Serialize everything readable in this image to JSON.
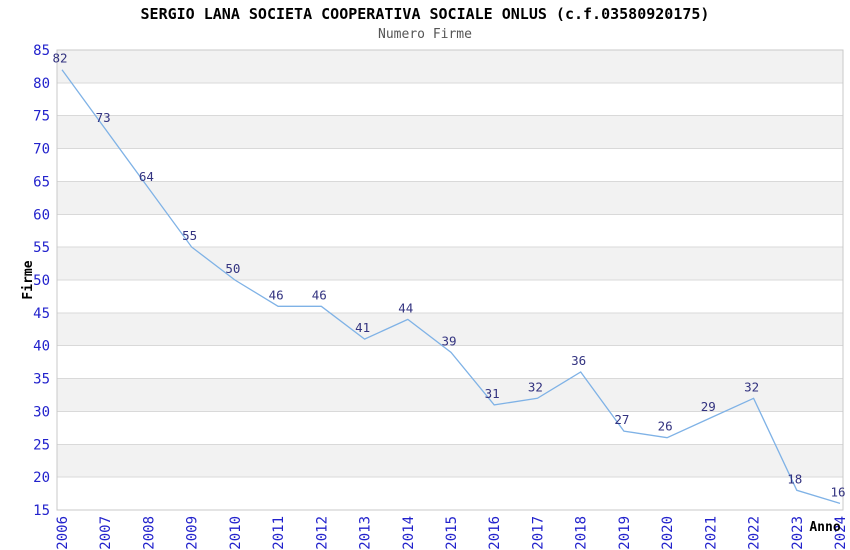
{
  "chart_data": {
    "type": "line",
    "title": "SERGIO LANA SOCIETA COOPERATIVA SOCIALE ONLUS (c.f.03580920175)",
    "subtitle": "Numero Firme",
    "xlabel": "Anno",
    "ylabel": "Firme",
    "x": [
      "2006",
      "2007",
      "2008",
      "2009",
      "2010",
      "2011",
      "2012",
      "2013",
      "2014",
      "2015",
      "2016",
      "2017",
      "2018",
      "2019",
      "2020",
      "2021",
      "2022",
      "2023",
      "2024"
    ],
    "values": [
      82,
      73,
      64,
      55,
      50,
      46,
      46,
      41,
      44,
      39,
      31,
      32,
      36,
      27,
      26,
      29,
      32,
      18,
      16
    ],
    "ylim": [
      15,
      85
    ],
    "ytick_step": 5,
    "ytick_labels": [
      "85",
      "80",
      "75",
      "70",
      "65",
      "60",
      "55",
      "50",
      "45",
      "40",
      "35",
      "30",
      "25",
      "20",
      "15"
    ],
    "grid": true,
    "legend": "none",
    "band_fill": "alternating-horizontal"
  },
  "colors": {
    "line": "#7fb2e6",
    "tick_label": "#2222cc",
    "data_label": "#333380",
    "band_gray": "#f2f2f2",
    "band_white": "#ffffff",
    "gridline": "#d9d9d9",
    "plot_border": "#c9c9c9",
    "title": "#000000",
    "subtitle": "#555555",
    "axis_title": "#000000",
    "background": "#ffffff"
  }
}
